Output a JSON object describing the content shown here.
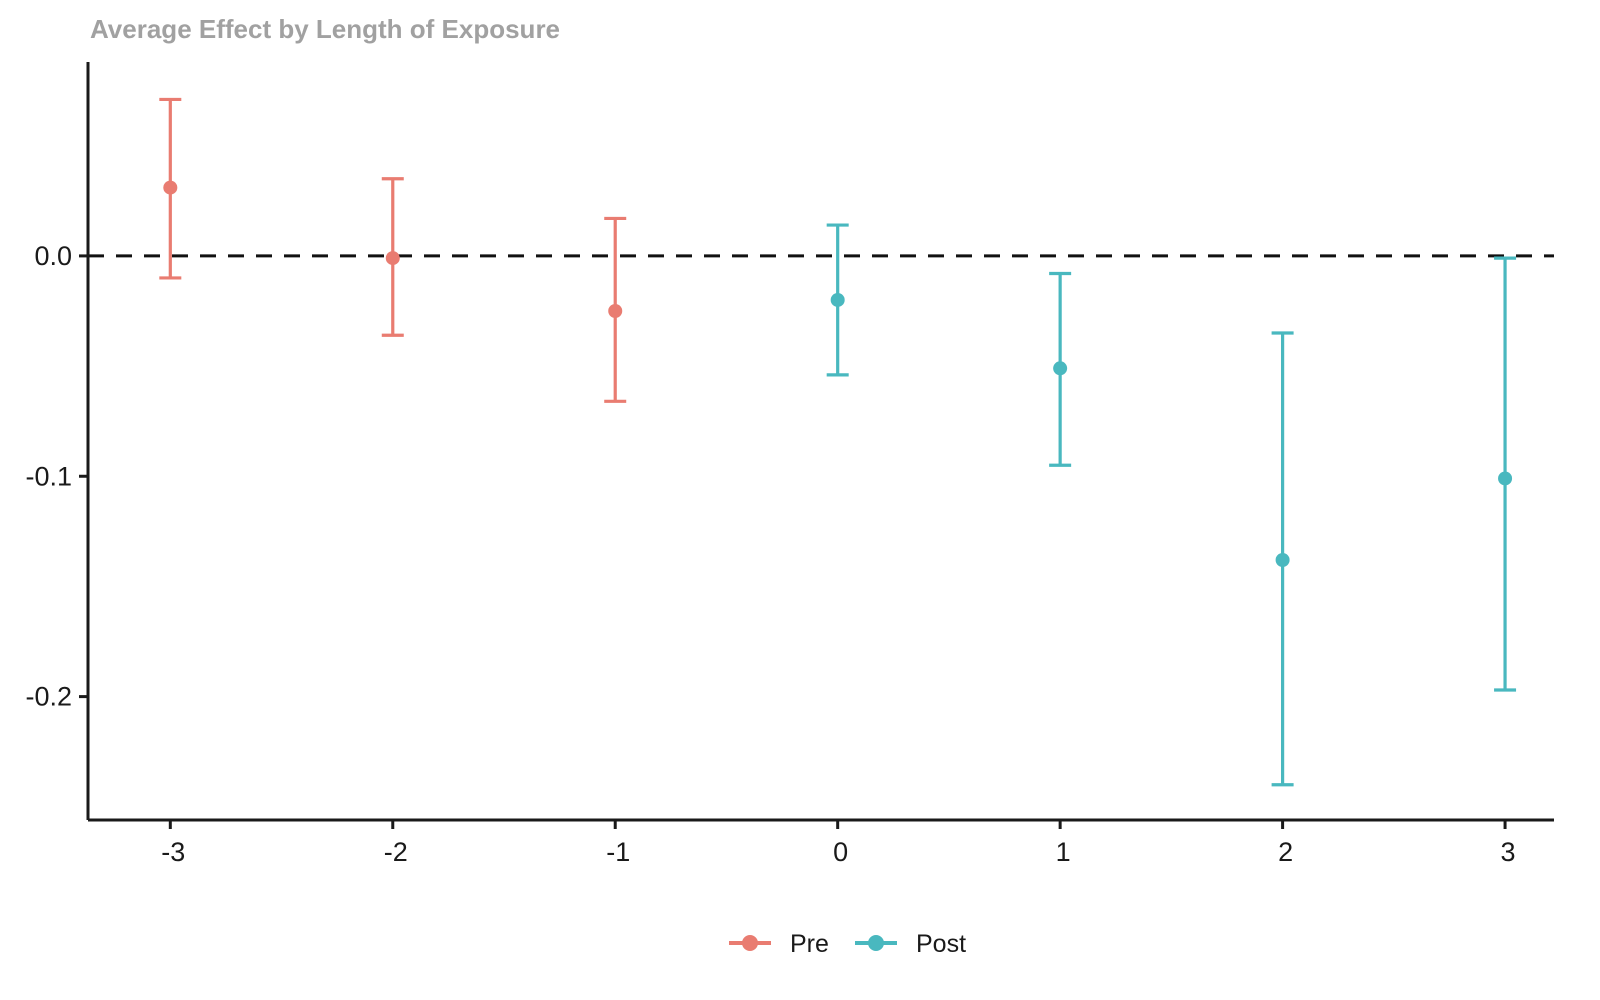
{
  "chart_data": {
    "type": "scatter",
    "subtype": "point-estimate-with-error-bars",
    "title": "Average Effect by Length of Exposure",
    "xlabel": "",
    "ylabel": "",
    "x_ticks": [
      "-3",
      "-2",
      "-1",
      "0",
      "1",
      "2",
      "3"
    ],
    "x_tick_values": [
      -3,
      -2,
      -1,
      0,
      1,
      2,
      3
    ],
    "y_ticks": [
      "0.0",
      "-0.1",
      "-0.2"
    ],
    "y_tick_values": [
      0,
      -0.1,
      -0.2
    ],
    "xlim": [
      -3.37,
      3.22
    ],
    "ylim": [
      -0.256,
      0.088
    ],
    "grid": "off",
    "reference_line": {
      "y": 0,
      "style": "dashed",
      "color": "#111111"
    },
    "legend_position": "bottom-center",
    "series": [
      {
        "name": "Pre",
        "color": "#E97C71",
        "x": [
          -3,
          -2,
          -1
        ],
        "est": [
          0.031,
          -0.001,
          -0.025
        ],
        "ci_low": [
          -0.01,
          -0.036,
          -0.066
        ],
        "ci_high": [
          0.071,
          0.035,
          0.017
        ]
      },
      {
        "name": "Post",
        "color": "#49B8BF",
        "x": [
          0,
          1,
          2,
          3
        ],
        "est": [
          -0.02,
          -0.051,
          -0.138,
          -0.101
        ],
        "ci_low": [
          -0.054,
          -0.095,
          -0.24,
          -0.197
        ],
        "ci_high": [
          0.014,
          -0.008,
          -0.035,
          -0.001
        ]
      }
    ],
    "colors": {
      "title": "#A1A1A1",
      "axis": "#1A1A1A",
      "tick_text": "#1A1A1A",
      "legend_text": "#1A1A1A",
      "background": "#FFFFFF"
    }
  }
}
